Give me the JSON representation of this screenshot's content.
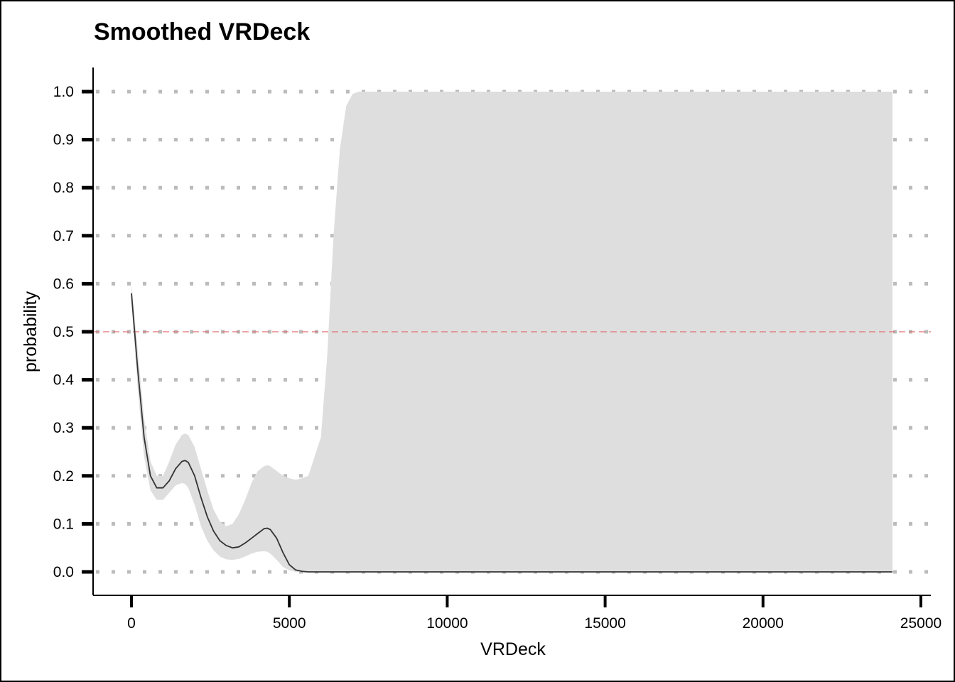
{
  "chart_data": {
    "type": "line",
    "title": "Smoothed VRDeck",
    "xlabel": "VRDeck",
    "ylabel": "probability",
    "xlim": [
      -1200,
      25300
    ],
    "ylim": [
      -0.05,
      1.05
    ],
    "x_ticks": [
      0,
      5000,
      10000,
      15000,
      20000,
      25000
    ],
    "x_tick_labels": [
      "0",
      "5000",
      "10000",
      "15000",
      "20000",
      "25000"
    ],
    "y_ticks": [
      0.0,
      0.1,
      0.2,
      0.3,
      0.4,
      0.5,
      0.6,
      0.7,
      0.8,
      0.9,
      1.0
    ],
    "y_tick_labels": [
      "0.0",
      "0.1",
      "0.2",
      "0.3",
      "0.4",
      "0.5",
      "0.6",
      "0.7",
      "0.8",
      "0.9",
      "1.0"
    ],
    "grid": "horizontal-dotted",
    "reference_line": {
      "y": 0.5,
      "color": "#e07070"
    },
    "colors": {
      "line": "#333333",
      "band": "#dedede",
      "grid": "#bbbbbb",
      "axis": "#000000"
    },
    "series": [
      {
        "x": [
          0,
          200,
          400,
          600,
          800,
          1000,
          1200,
          1400,
          1600,
          1700,
          1800,
          2000,
          2200,
          2400,
          2600,
          2800,
          3000,
          3200,
          3400,
          3600,
          3800,
          4000,
          4200,
          4300,
          4400,
          4600,
          4800,
          5000,
          5200,
          5400,
          5600,
          6000,
          6200,
          6400,
          6600,
          6800,
          7000,
          7200,
          7500,
          8000,
          10000,
          15000,
          20000,
          24100
        ],
        "y": [
          0.58,
          0.42,
          0.28,
          0.2,
          0.175,
          0.175,
          0.19,
          0.215,
          0.23,
          0.232,
          0.228,
          0.2,
          0.155,
          0.115,
          0.085,
          0.065,
          0.055,
          0.05,
          0.052,
          0.06,
          0.07,
          0.08,
          0.09,
          0.091,
          0.088,
          0.07,
          0.04,
          0.015,
          0.004,
          0.001,
          0.0,
          0.0,
          0.0,
          0.0,
          0.0,
          0.0,
          0.0,
          0.0,
          0.0,
          0.0,
          0.0,
          0.0,
          0.0,
          0.0
        ],
        "lower": [
          0.56,
          0.38,
          0.24,
          0.17,
          0.15,
          0.15,
          0.165,
          0.18,
          0.185,
          0.183,
          0.175,
          0.14,
          0.095,
          0.065,
          0.045,
          0.032,
          0.026,
          0.025,
          0.027,
          0.032,
          0.038,
          0.042,
          0.043,
          0.042,
          0.038,
          0.025,
          0.01,
          0.003,
          0.0,
          0.0,
          0.0,
          0.0,
          0.0,
          0.0,
          0.0,
          0.0,
          0.0,
          0.0,
          0.0,
          0.0,
          0.0,
          0.0,
          0.0,
          0.0
        ],
        "upper": [
          0.6,
          0.46,
          0.32,
          0.23,
          0.2,
          0.2,
          0.23,
          0.265,
          0.285,
          0.288,
          0.285,
          0.26,
          0.215,
          0.17,
          0.13,
          0.105,
          0.095,
          0.1,
          0.12,
          0.15,
          0.185,
          0.21,
          0.22,
          0.222,
          0.22,
          0.21,
          0.2,
          0.195,
          0.192,
          0.195,
          0.2,
          0.28,
          0.45,
          0.7,
          0.88,
          0.97,
          0.995,
          1.0,
          1.0,
          1.0,
          1.0,
          1.0,
          1.0,
          1.0
        ]
      }
    ]
  }
}
